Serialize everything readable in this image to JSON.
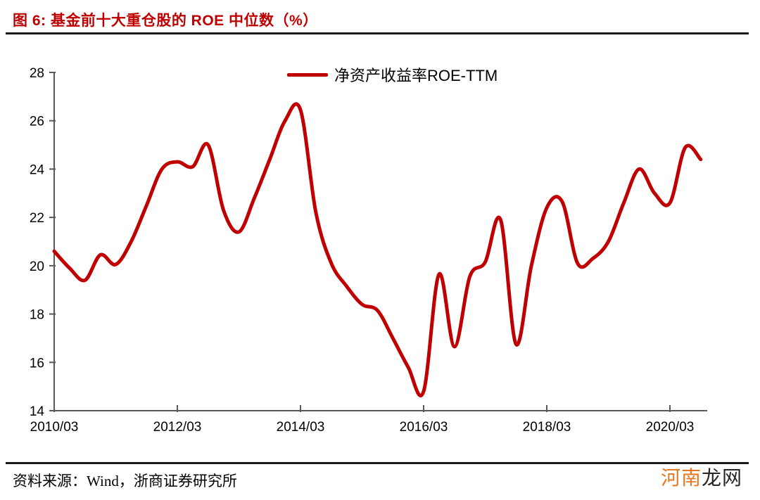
{
  "figure": {
    "title": "图 6: 基金前十大重仓股的 ROE 中位数（%）",
    "source_note": "资料来源：Wind，浙商证券研究所",
    "watermark": {
      "highlight": "河南",
      "rest": "龙网"
    }
  },
  "colors": {
    "series_red": "#C00000",
    "title_red": "#C00000",
    "rule_dark": "#1A1A1A",
    "axis_gray": "#595959",
    "watermark_orange": "#E87722"
  },
  "chart_data": {
    "type": "line",
    "title": "基金前十大重仓股的ROE中位数（%）",
    "legend": [
      "净资产收益率ROE-TTM"
    ],
    "legend_position": "top-center",
    "smooth": true,
    "grid": false,
    "ylim": [
      14,
      28
    ],
    "y_ticks": [
      14,
      16,
      18,
      20,
      22,
      24,
      26,
      28
    ],
    "x_tick_labels": [
      "2010/03",
      "2012/03",
      "2014/03",
      "2016/03",
      "2018/03",
      "2020/03"
    ],
    "x": [
      "2010/03",
      "2010/06",
      "2010/09",
      "2010/12",
      "2011/03",
      "2011/06",
      "2011/09",
      "2011/12",
      "2012/03",
      "2012/06",
      "2012/09",
      "2012/12",
      "2013/03",
      "2013/06",
      "2013/09",
      "2013/12",
      "2014/03",
      "2014/06",
      "2014/09",
      "2014/12",
      "2015/03",
      "2015/06",
      "2015/09",
      "2015/12",
      "2016/03",
      "2016/06",
      "2016/09",
      "2016/12",
      "2017/03",
      "2017/06",
      "2017/09",
      "2017/12",
      "2018/03",
      "2018/06",
      "2018/09",
      "2018/12",
      "2019/03",
      "2019/06",
      "2019/09",
      "2019/12",
      "2020/03",
      "2020/06",
      "2020/09"
    ],
    "series": [
      {
        "name": "净资产收益率ROE-TTM",
        "color": "#C00000",
        "values": [
          20.6,
          19.9,
          19.4,
          20.45,
          20.05,
          21.0,
          22.5,
          24.0,
          24.3,
          24.1,
          25.0,
          22.3,
          21.4,
          22.8,
          24.4,
          26.0,
          26.45,
          22.2,
          20.1,
          19.15,
          18.4,
          18.15,
          17.0,
          15.8,
          14.8,
          19.65,
          16.65,
          19.55,
          20.15,
          21.9,
          16.75,
          20.0,
          22.4,
          22.65,
          20.1,
          20.3,
          21.0,
          22.6,
          24.0,
          23.0,
          22.6,
          24.9,
          24.4
        ]
      }
    ]
  }
}
